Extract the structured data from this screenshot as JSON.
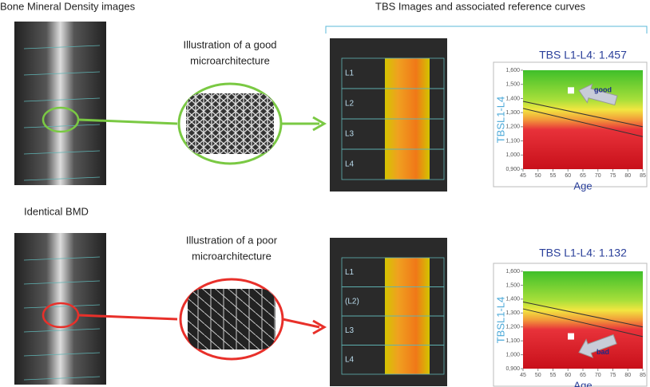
{
  "headings": {
    "left": "Bone Mineral Density images",
    "right": "TBS Images and associated reference curves",
    "middle": "Identical BMD"
  },
  "panels": [
    {
      "illustration": [
        "Illustration of a good",
        "microarchitecture"
      ],
      "vertebrae": [
        "L1",
        "L2",
        "L3",
        "L4"
      ],
      "chart": {
        "type": "scatter",
        "title": "TBS L1-L4: 1.457",
        "xlabel": "Age",
        "ylabel": "TBSL1-L4",
        "xlim": [
          45,
          85
        ],
        "ylim": [
          0.9,
          1.6
        ],
        "xticks": [
          45,
          50,
          55,
          60,
          65,
          70,
          75,
          80,
          85
        ],
        "yticks": [
          {
            "value": 0.9,
            "label": "0,900"
          },
          {
            "value": 1.0,
            "label": "1,000"
          },
          {
            "value": 1.1,
            "label": "1,100"
          },
          {
            "value": 1.2,
            "label": "1,200"
          },
          {
            "value": 1.3,
            "label": "1,300"
          },
          {
            "value": 1.4,
            "label": "1,400"
          },
          {
            "value": 1.5,
            "label": "1,500"
          },
          {
            "value": 1.6,
            "label": "1,600"
          }
        ],
        "x": [
          61
        ],
        "values": [
          1.457
        ],
        "annotation": "good",
        "series": [
          {
            "color": "#333",
            "x": [
              45,
              85
            ],
            "values": [
              1.38,
              1.2
            ]
          },
          {
            "color": "#333",
            "x": [
              45,
              85
            ],
            "values": [
              1.33,
              1.13
            ]
          }
        ]
      }
    },
    {
      "illustration": [
        "Illustration of a poor",
        "microarchitecture"
      ],
      "vertebrae": [
        "L1",
        "(L2)",
        "L3",
        "L4"
      ],
      "chart": {
        "type": "scatter",
        "title": "TBS L1-L4: 1.132",
        "xlabel": "Age",
        "ylabel": "TBSL1-L4",
        "xlim": [
          45,
          85
        ],
        "ylim": [
          0.9,
          1.6
        ],
        "xticks": [
          45,
          50,
          55,
          60,
          65,
          70,
          75,
          80,
          85
        ],
        "yticks": [
          {
            "value": 0.9,
            "label": "0,900"
          },
          {
            "value": 1.0,
            "label": "1,000"
          },
          {
            "value": 1.1,
            "label": "1,100"
          },
          {
            "value": 1.2,
            "label": "1,200"
          },
          {
            "value": 1.3,
            "label": "1,300"
          },
          {
            "value": 1.4,
            "label": "1,400"
          },
          {
            "value": 1.5,
            "label": "1,500"
          },
          {
            "value": 1.6,
            "label": "1,600"
          }
        ],
        "x": [
          61
        ],
        "values": [
          1.132
        ],
        "annotation": "bad",
        "series": [
          {
            "color": "#333",
            "x": [
              45,
              85
            ],
            "values": [
              1.38,
              1.2
            ]
          },
          {
            "color": "#333",
            "x": [
              45,
              85
            ],
            "values": [
              1.33,
              1.13
            ]
          }
        ]
      }
    }
  ]
}
